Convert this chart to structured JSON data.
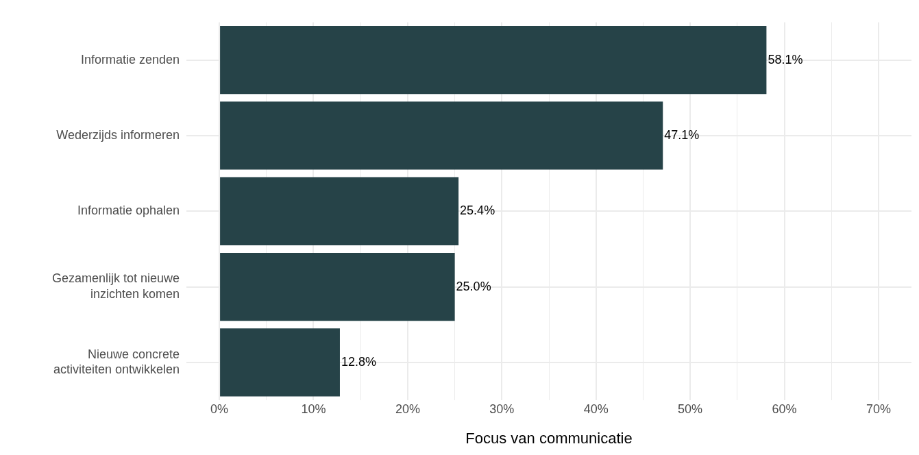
{
  "chart_data": {
    "type": "bar",
    "orientation": "horizontal",
    "xlabel": "Focus van communicatie",
    "categories": [
      "Informatie zenden",
      "Wederzijds informeren",
      "Informatie ophalen",
      "Gezamenlijk tot nieuwe\ninzichten komen",
      "Nieuwe concrete\nactiviteiten ontwikkelen"
    ],
    "values": [
      58.1,
      47.1,
      25.4,
      25.0,
      12.8
    ],
    "value_labels": [
      "58.1%",
      "47.1%",
      "25.4%",
      "25.0%",
      "12.8%"
    ],
    "color": "#264348",
    "xlim": [
      -3.5,
      73.5
    ],
    "xticks": [
      {
        "value": 0,
        "label": "0%"
      },
      {
        "value": 5,
        "label": null
      },
      {
        "value": 10,
        "label": "10%"
      },
      {
        "value": 15,
        "label": null
      },
      {
        "value": 20,
        "label": "20%"
      },
      {
        "value": 25,
        "label": null
      },
      {
        "value": 30,
        "label": "30%"
      },
      {
        "value": 35,
        "label": null
      },
      {
        "value": 40,
        "label": "40%"
      },
      {
        "value": 45,
        "label": null
      },
      {
        "value": 50,
        "label": "50%"
      },
      {
        "value": 55,
        "label": null
      },
      {
        "value": 60,
        "label": "60%"
      },
      {
        "value": 65,
        "label": null
      },
      {
        "value": 70,
        "label": "70%"
      }
    ],
    "grid": true,
    "legend": false
  }
}
